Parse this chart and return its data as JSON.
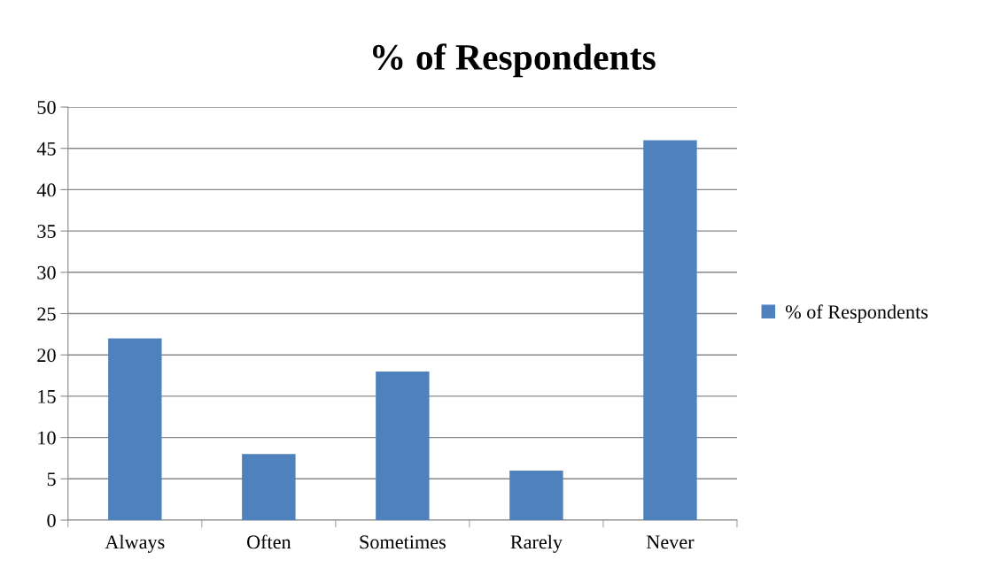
{
  "chart_data": {
    "type": "bar",
    "title": "% of Respondents",
    "categories": [
      "Always",
      "Often",
      "Sometimes",
      "Rarely",
      "Never"
    ],
    "series": [
      {
        "name": "% of Respondents",
        "color": "#4f81bd",
        "values": [
          22,
          8,
          18,
          6,
          46
        ]
      }
    ],
    "ylim": [
      0,
      50
    ],
    "yticks": [
      0,
      5,
      10,
      15,
      20,
      25,
      30,
      35,
      40,
      45,
      50
    ],
    "grid": "y",
    "legend": "right"
  }
}
